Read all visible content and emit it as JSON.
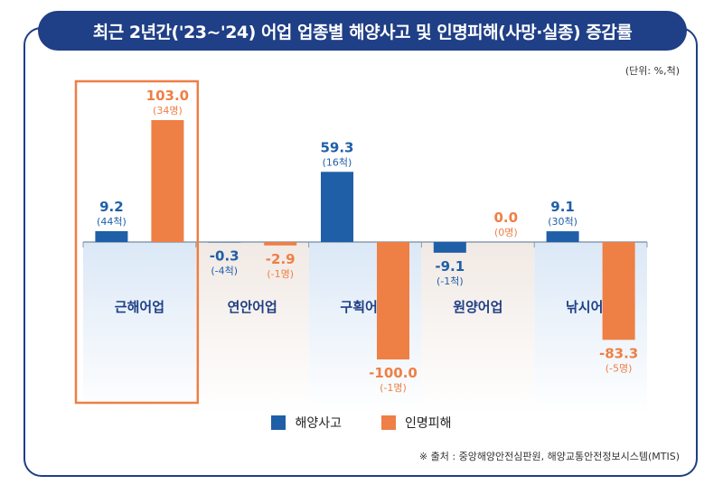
{
  "title": "최근 2년간('23~'24) 어업 업종별 해양사고 및 인명피해(사망·실종) 증감률",
  "unit_note": "(단위: %,척)",
  "source_note": "※ 출처 : 중앙해양안전심판원, 해양교통안전정보시스템(MTIS)",
  "colors": {
    "accident": "#1f5fa8",
    "casualty": "#ee7f45",
    "highlight": "#ee7f45",
    "frame": "#1f3f86"
  },
  "chart_data": {
    "type": "bar",
    "title": "최근 2년간('23~'24) 어업 업종별 해양사고 및 인명피해(사망·실종) 증감률",
    "xlabel": "",
    "ylabel": "",
    "ylim": [
      -100,
      103
    ],
    "grid": false,
    "legend": "bottom",
    "highlight_category": "근해어업",
    "categories": [
      "근해어업",
      "연안어업",
      "구획어업",
      "원양어업",
      "낚시어선"
    ],
    "series": [
      {
        "name": "해양사고",
        "values": [
          9.2,
          -0.3,
          59.3,
          -9.1,
          9.1
        ],
        "labels": [
          "9.2",
          "-0.3",
          "59.3",
          "-9.1",
          "9.1"
        ],
        "counts": [
          "(44척)",
          "(-4척)",
          "(16척)",
          "(-1척)",
          "(30척)"
        ]
      },
      {
        "name": "인명피해",
        "values": [
          103.0,
          -2.9,
          -100.0,
          0.0,
          -83.3
        ],
        "labels": [
          "103.0",
          "-2.9",
          "-100.0",
          "0.0",
          "-83.3"
        ],
        "counts": [
          "(34명)",
          "(-1명)",
          "(-1명)",
          "(0명)",
          "(-5명)"
        ]
      }
    ]
  }
}
